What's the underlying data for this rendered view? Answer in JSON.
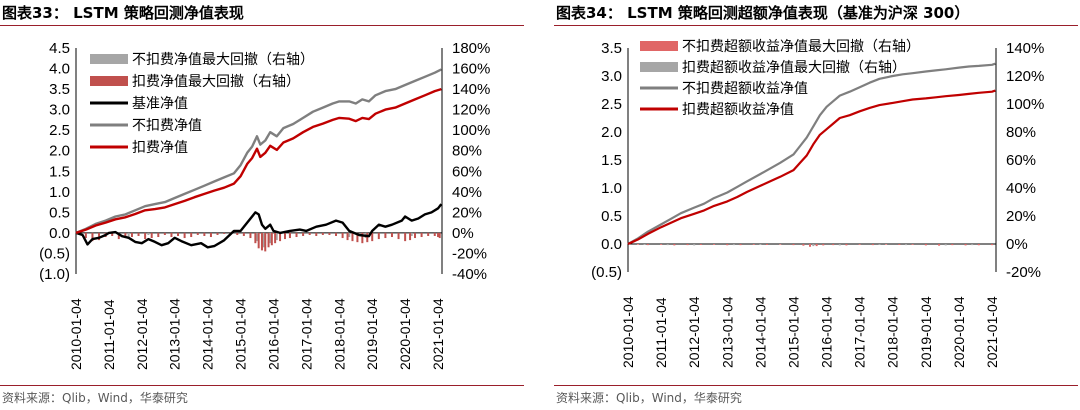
{
  "source_text": "资料来源：Qlib，Wind，华泰研究",
  "chart_data": [
    {
      "type": "line",
      "title": "图表33：  LSTM 策略回测净值表现",
      "x_ticks": [
        "2010-01-04",
        "2011-01-04",
        "2012-01-04",
        "2013-01-04",
        "2014-01-04",
        "2015-01-04",
        "2016-01-04",
        "2017-01-04",
        "2018-01-04",
        "2019-01-04",
        "2020-01-04",
        "2021-01-04"
      ],
      "ylim_left": [
        -1.0,
        4.5
      ],
      "yticks_left": [
        "(1.0)",
        "(0.5)",
        "0.0",
        "0.5",
        "1.0",
        "1.5",
        "2.0",
        "2.5",
        "3.0",
        "3.5",
        "4.0",
        "4.5"
      ],
      "ylim_right": [
        -0.4,
        1.8
      ],
      "yticks_right": [
        "-40%",
        "-20%",
        "0%",
        "20%",
        "40%",
        "60%",
        "80%",
        "100%",
        "120%",
        "140%",
        "160%",
        "180%"
      ],
      "legend_position": "top-left",
      "series": [
        {
          "name": "不扣费净值最大回撤（右轴）",
          "style": "bar",
          "axis": "right",
          "color": "#a6a6a6",
          "x": [
            2010.5,
            2011.6,
            2012.2,
            2015.5,
            2015.7,
            2015.9,
            2016.1,
            2016.5,
            2018.3,
            2018.8,
            2020.2
          ],
          "y": [
            -0.05,
            -0.06,
            -0.02,
            -0.08,
            -0.14,
            -0.1,
            -0.07,
            -0.03,
            -0.04,
            -0.05,
            -0.03
          ]
        },
        {
          "name": "扣费净值最大回撤（右轴）",
          "style": "bar",
          "axis": "right",
          "color": "#c0504d",
          "x": [
            2010.1,
            2010.3,
            2010.5,
            2010.7,
            2010.9,
            2011.1,
            2011.3,
            2011.5,
            2011.7,
            2011.9,
            2012.1,
            2012.3,
            2012.5,
            2012.7,
            2012.9,
            2013.1,
            2013.3,
            2013.5,
            2013.7,
            2013.9,
            2014.1,
            2014.3,
            2014.5,
            2014.7,
            2014.9,
            2015.1,
            2015.3,
            2015.45,
            2015.55,
            2015.65,
            2015.75,
            2015.85,
            2015.95,
            2016.05,
            2016.2,
            2016.35,
            2016.5,
            2016.7,
            2016.9,
            2017.1,
            2017.3,
            2017.5,
            2017.7,
            2017.9,
            2018.1,
            2018.25,
            2018.4,
            2018.55,
            2018.7,
            2018.85,
            2019.0,
            2019.2,
            2019.4,
            2019.6,
            2019.8,
            2020.0,
            2020.15,
            2020.3,
            2020.5,
            2020.7,
            2020.9,
            2021.0,
            2021.05
          ],
          "y": [
            -0.02,
            -0.05,
            -0.08,
            -0.07,
            -0.04,
            -0.03,
            -0.06,
            -0.05,
            -0.04,
            -0.03,
            -0.06,
            -0.05,
            -0.04,
            -0.02,
            -0.04,
            -0.03,
            -0.05,
            -0.04,
            -0.02,
            -0.03,
            -0.04,
            -0.02,
            -0.01,
            -0.01,
            -0.02,
            -0.03,
            -0.05,
            -0.1,
            -0.15,
            -0.17,
            -0.18,
            -0.14,
            -0.12,
            -0.1,
            -0.08,
            -0.06,
            -0.05,
            -0.04,
            -0.03,
            -0.02,
            -0.03,
            -0.02,
            -0.02,
            -0.03,
            -0.05,
            -0.07,
            -0.08,
            -0.09,
            -0.1,
            -0.09,
            -0.08,
            -0.06,
            -0.05,
            -0.04,
            -0.06,
            -0.08,
            -0.07,
            -0.05,
            -0.04,
            -0.03,
            -0.03,
            -0.04,
            -0.05
          ]
        },
        {
          "name": "基准净值",
          "style": "line",
          "axis": "left",
          "color": "#000000",
          "width": 2.4,
          "x": [
            2010.0,
            2010.2,
            2010.35,
            2010.5,
            2010.7,
            2010.9,
            2011.0,
            2011.2,
            2011.4,
            2011.6,
            2011.8,
            2012.0,
            2012.2,
            2012.4,
            2012.6,
            2012.8,
            2013.0,
            2013.2,
            2013.5,
            2013.8,
            2014.0,
            2014.2,
            2014.5,
            2014.8,
            2015.0,
            2015.2,
            2015.45,
            2015.55,
            2015.65,
            2015.75,
            2015.9,
            2016.0,
            2016.2,
            2016.5,
            2016.8,
            2017.0,
            2017.3,
            2017.6,
            2017.9,
            2018.1,
            2018.3,
            2018.6,
            2018.9,
            2019.0,
            2019.2,
            2019.4,
            2019.6,
            2019.9,
            2020.0,
            2020.2,
            2020.4,
            2020.6,
            2020.8,
            2021.0,
            2021.1
          ],
          "y": [
            0.0,
            -0.05,
            -0.28,
            -0.15,
            -0.12,
            -0.05,
            0.0,
            0.02,
            -0.08,
            -0.12,
            -0.22,
            -0.25,
            -0.15,
            -0.22,
            -0.3,
            -0.25,
            -0.12,
            -0.2,
            -0.3,
            -0.25,
            -0.35,
            -0.32,
            -0.18,
            0.05,
            0.05,
            0.25,
            0.5,
            0.45,
            0.2,
            0.1,
            0.2,
            0.05,
            0.0,
            0.05,
            0.08,
            0.05,
            0.15,
            0.2,
            0.3,
            0.25,
            0.05,
            -0.05,
            -0.08,
            0.05,
            0.2,
            0.15,
            0.2,
            0.3,
            0.4,
            0.3,
            0.35,
            0.45,
            0.5,
            0.6,
            0.7
          ]
        },
        {
          "name": "不扣费净值",
          "style": "line",
          "axis": "left",
          "color": "#7f7f7f",
          "width": 2.4,
          "x": [
            2010.0,
            2010.3,
            2010.6,
            2010.9,
            2011.2,
            2011.5,
            2011.8,
            2012.1,
            2012.4,
            2012.7,
            2013.0,
            2013.3,
            2013.6,
            2013.9,
            2014.2,
            2014.5,
            2014.8,
            2015.0,
            2015.2,
            2015.35,
            2015.5,
            2015.6,
            2015.75,
            2015.9,
            2016.1,
            2016.3,
            2016.6,
            2016.9,
            2017.2,
            2017.5,
            2017.8,
            2018.0,
            2018.3,
            2018.5,
            2018.7,
            2018.9,
            2019.1,
            2019.4,
            2019.7,
            2020.0,
            2020.3,
            2020.6,
            2020.9,
            2021.1
          ],
          "y": [
            0.0,
            0.1,
            0.22,
            0.3,
            0.4,
            0.45,
            0.55,
            0.65,
            0.7,
            0.75,
            0.85,
            0.95,
            1.05,
            1.15,
            1.25,
            1.35,
            1.45,
            1.65,
            1.95,
            2.1,
            2.35,
            2.15,
            2.25,
            2.45,
            2.35,
            2.55,
            2.65,
            2.8,
            2.95,
            3.05,
            3.15,
            3.2,
            3.2,
            3.15,
            3.25,
            3.2,
            3.35,
            3.45,
            3.5,
            3.6,
            3.7,
            3.8,
            3.9,
            3.98
          ]
        },
        {
          "name": "扣费净值",
          "style": "line",
          "axis": "left",
          "color": "#c00000",
          "width": 2.4,
          "x": [
            2010.0,
            2010.3,
            2010.6,
            2010.9,
            2011.2,
            2011.5,
            2011.8,
            2012.1,
            2012.4,
            2012.7,
            2013.0,
            2013.3,
            2013.6,
            2013.9,
            2014.2,
            2014.5,
            2014.8,
            2015.0,
            2015.2,
            2015.35,
            2015.5,
            2015.6,
            2015.75,
            2015.9,
            2016.1,
            2016.3,
            2016.6,
            2016.9,
            2017.2,
            2017.5,
            2017.8,
            2018.0,
            2018.3,
            2018.5,
            2018.7,
            2018.9,
            2019.1,
            2019.4,
            2019.7,
            2020.0,
            2020.3,
            2020.6,
            2020.9,
            2021.1
          ],
          "y": [
            0.0,
            0.08,
            0.18,
            0.25,
            0.33,
            0.38,
            0.46,
            0.55,
            0.58,
            0.62,
            0.7,
            0.78,
            0.87,
            0.95,
            1.03,
            1.1,
            1.2,
            1.38,
            1.68,
            1.82,
            2.05,
            1.85,
            1.95,
            2.12,
            2.02,
            2.2,
            2.3,
            2.45,
            2.58,
            2.66,
            2.75,
            2.8,
            2.78,
            2.72,
            2.8,
            2.77,
            2.9,
            3.0,
            3.05,
            3.15,
            3.25,
            3.35,
            3.45,
            3.5
          ]
        }
      ]
    },
    {
      "type": "line",
      "title": "图表34：  LSTM 策略回测超额净值表现（基准为沪深 300）",
      "x_ticks": [
        "2010-01-04",
        "2011-01-04",
        "2012-01-04",
        "2013-01-04",
        "2014-01-04",
        "2015-01-04",
        "2016-01-04",
        "2017-01-04",
        "2018-01-04",
        "2019-01-04",
        "2020-01-04",
        "2021-01-04"
      ],
      "ylim_left": [
        -0.5,
        3.5
      ],
      "yticks_left": [
        "(0.5)",
        "0.0",
        "0.5",
        "1.0",
        "1.5",
        "2.0",
        "2.5",
        "3.0",
        "3.5"
      ],
      "ylim_right": [
        -0.2,
        1.4
      ],
      "yticks_right": [
        "-20%",
        "0%",
        "20%",
        "40%",
        "60%",
        "80%",
        "100%",
        "120%",
        "140%"
      ],
      "legend_position": "top-left",
      "series": [
        {
          "name": "不扣费超额收益净值最大回撤（右轴）",
          "style": "bar",
          "axis": "right",
          "color": "#e06666",
          "x": [
            2010.3,
            2010.6,
            2011.0,
            2011.4,
            2011.8,
            2012.2,
            2012.6,
            2013.0,
            2013.4,
            2013.8,
            2014.2,
            2014.6,
            2015.0,
            2015.3,
            2015.5,
            2015.7,
            2015.9,
            2016.2,
            2016.6,
            2017.0,
            2017.4,
            2017.8,
            2018.2,
            2018.6,
            2019.0,
            2019.4,
            2019.8,
            2020.2,
            2020.6,
            2021.0
          ],
          "y": [
            -0.005,
            -0.008,
            -0.006,
            -0.01,
            -0.008,
            -0.007,
            -0.006,
            -0.009,
            -0.008,
            -0.006,
            -0.007,
            -0.005,
            -0.008,
            -0.012,
            -0.02,
            -0.015,
            -0.01,
            -0.008,
            -0.01,
            -0.006,
            -0.008,
            -0.005,
            -0.007,
            -0.006,
            -0.01,
            -0.012,
            -0.008,
            -0.01,
            -0.009,
            -0.008
          ]
        },
        {
          "name": "扣费超额收益净值最大回撤（右轴）",
          "style": "bar",
          "axis": "right",
          "color": "#a6a6a6",
          "x": [
            2010.5,
            2011.2,
            2012.0,
            2013.2,
            2014.0,
            2015.6,
            2016.4,
            2017.6,
            2018.4,
            2019.6,
            2020.4
          ],
          "y": [
            -0.006,
            -0.008,
            -0.01,
            -0.008,
            -0.006,
            -0.015,
            -0.01,
            -0.007,
            -0.008,
            -0.01,
            -0.008
          ]
        },
        {
          "name": "不扣费超额收益净值",
          "style": "line",
          "axis": "left",
          "color": "#7f7f7f",
          "width": 2.2,
          "x": [
            2010.0,
            2010.3,
            2010.6,
            2011.0,
            2011.3,
            2011.6,
            2012.0,
            2012.3,
            2012.6,
            2013.0,
            2013.3,
            2013.6,
            2014.0,
            2014.3,
            2014.6,
            2015.0,
            2015.2,
            2015.4,
            2015.5,
            2015.6,
            2015.8,
            2016.0,
            2016.2,
            2016.4,
            2016.7,
            2017.0,
            2017.3,
            2017.6,
            2018.0,
            2018.3,
            2018.6,
            2019.0,
            2019.3,
            2019.6,
            2020.0,
            2020.3,
            2020.6,
            2021.0,
            2021.1
          ],
          "y": [
            0.0,
            0.1,
            0.22,
            0.35,
            0.45,
            0.55,
            0.65,
            0.72,
            0.82,
            0.92,
            1.02,
            1.12,
            1.25,
            1.35,
            1.45,
            1.6,
            1.75,
            1.9,
            2.0,
            2.1,
            2.3,
            2.45,
            2.55,
            2.65,
            2.72,
            2.8,
            2.88,
            2.95,
            3.0,
            3.03,
            3.05,
            3.08,
            3.1,
            3.12,
            3.15,
            3.17,
            3.18,
            3.2,
            3.22
          ]
        },
        {
          "name": "扣费超额收益净值",
          "style": "line",
          "axis": "left",
          "color": "#c00000",
          "width": 2.2,
          "x": [
            2010.0,
            2010.3,
            2010.6,
            2011.0,
            2011.3,
            2011.6,
            2012.0,
            2012.3,
            2012.6,
            2013.0,
            2013.3,
            2013.6,
            2014.0,
            2014.3,
            2014.6,
            2015.0,
            2015.2,
            2015.4,
            2015.5,
            2015.6,
            2015.8,
            2016.0,
            2016.2,
            2016.4,
            2016.7,
            2017.0,
            2017.3,
            2017.6,
            2018.0,
            2018.3,
            2018.6,
            2019.0,
            2019.3,
            2019.6,
            2020.0,
            2020.3,
            2020.6,
            2021.0,
            2021.1
          ],
          "y": [
            0.0,
            0.08,
            0.18,
            0.3,
            0.38,
            0.46,
            0.54,
            0.6,
            0.68,
            0.76,
            0.84,
            0.93,
            1.04,
            1.12,
            1.2,
            1.32,
            1.45,
            1.58,
            1.68,
            1.78,
            1.95,
            2.05,
            2.15,
            2.25,
            2.3,
            2.37,
            2.43,
            2.48,
            2.52,
            2.55,
            2.58,
            2.6,
            2.62,
            2.64,
            2.66,
            2.68,
            2.7,
            2.72,
            2.74
          ]
        }
      ]
    }
  ]
}
